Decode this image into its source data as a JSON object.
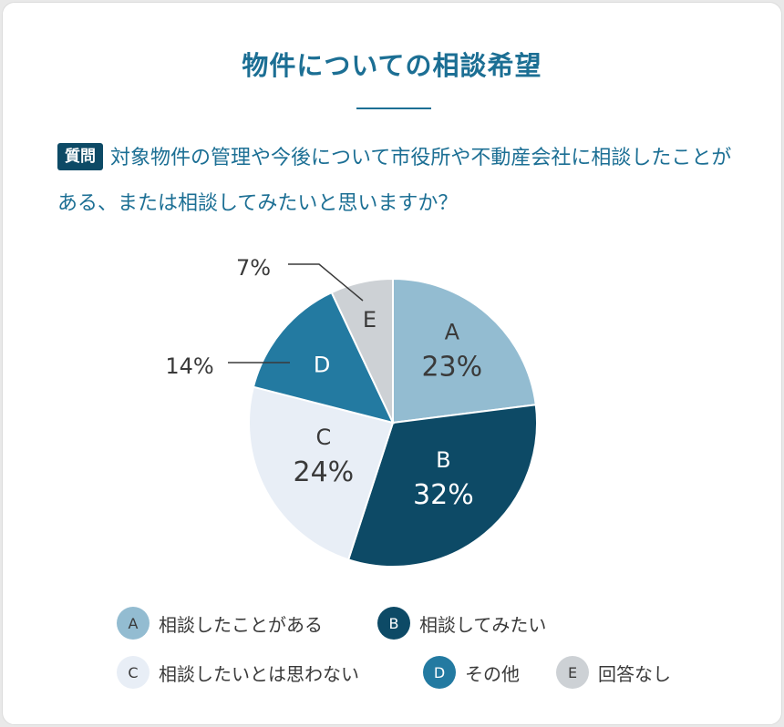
{
  "title": "物件についての相談希望",
  "question": {
    "badge": "質問",
    "text": "対象物件の管理や今後について市役所や不動産会社に相談したことがある、または相談してみたいと思いますか？"
  },
  "chart_data": {
    "type": "pie",
    "title": "物件についての相談希望",
    "slices": [
      {
        "key": "A",
        "label": "相談したことがある",
        "value": 23,
        "display": "23%",
        "color": "#93bcd1",
        "text_color": "#3a3a3a"
      },
      {
        "key": "B",
        "label": "相談してみたい",
        "value": 32,
        "display": "32%",
        "color": "#0d4a66",
        "text_color": "#ffffff"
      },
      {
        "key": "C",
        "label": "相談したいとは思わない",
        "value": 24,
        "display": "24%",
        "color": "#e8eef6",
        "text_color": "#3a3a3a"
      },
      {
        "key": "D",
        "label": "その他",
        "value": 14,
        "display": "14%",
        "color": "#237aa1",
        "text_color": "#ffffff"
      },
      {
        "key": "E",
        "label": "回答なし",
        "value": 7,
        "display": "7%",
        "color": "#cdd1d5",
        "text_color": "#3a3a3a"
      }
    ],
    "start": "12 o'clock",
    "direction": "clockwise",
    "legend_position": "bottom"
  }
}
